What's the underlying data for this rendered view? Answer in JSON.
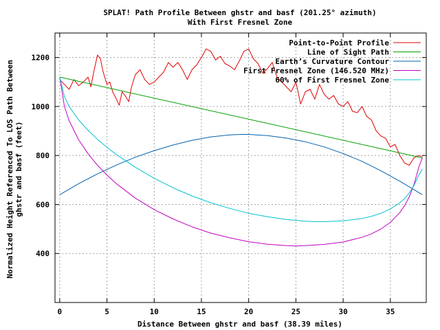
{
  "chart_data": {
    "type": "line",
    "title_line1": "SPLAT! Path Profile Between ghstr and basf (201.25° azimuth)",
    "title_line2": "With First Fresnel Zone",
    "xlabel": "Distance Between ghstr and basf (38.39 miles)",
    "ylabel_line1": "Normalized Height Referenced To LOS Path Between",
    "ylabel_line2": "ghstr and basf (feet)",
    "xlim": [
      -0.5,
      38.8
    ],
    "ylim": [
      200,
      1300
    ],
    "x_ticks": [
      0,
      5,
      10,
      15,
      20,
      25,
      30,
      35
    ],
    "y_ticks": [
      400,
      600,
      800,
      1000,
      1200
    ],
    "grid": true,
    "legend_position": "top-right",
    "series": [
      {
        "name": "Point-to-Point Profile",
        "color": "#e00000",
        "x": [
          0,
          0.5,
          1,
          1.5,
          2,
          2.5,
          3,
          3.3,
          3.6,
          4,
          4.3,
          4.6,
          5,
          5.3,
          5.6,
          6,
          6.3,
          6.6,
          7,
          7.3,
          7.6,
          8,
          8.5,
          9,
          9.5,
          10,
          10.5,
          11,
          11.5,
          12,
          12.5,
          13,
          13.5,
          14,
          14.5,
          15,
          15.5,
          16,
          16.5,
          17,
          17.5,
          18,
          18.5,
          19,
          19.5,
          20,
          20.5,
          21,
          21.5,
          22,
          22.5,
          23,
          23.5,
          24,
          24.5,
          25,
          25.5,
          26,
          26.5,
          27,
          27.5,
          28,
          28.5,
          29,
          29.5,
          30,
          30.5,
          31,
          31.5,
          32,
          32.5,
          33,
          33.5,
          34,
          34.5,
          35,
          35.5,
          36,
          36.5,
          37,
          37.5,
          38,
          38.39
        ],
        "y": [
          1110,
          1090,
          1070,
          1110,
          1085,
          1100,
          1120,
          1080,
          1140,
          1210,
          1195,
          1140,
          1090,
          1100,
          1060,
          1030,
          1005,
          1060,
          1040,
          1020,
          1080,
          1130,
          1150,
          1110,
          1090,
          1100,
          1120,
          1140,
          1180,
          1160,
          1180,
          1150,
          1110,
          1150,
          1170,
          1200,
          1235,
          1225,
          1190,
          1205,
          1175,
          1165,
          1150,
          1185,
          1225,
          1235,
          1195,
          1175,
          1135,
          1155,
          1180,
          1120,
          1100,
          1080,
          1060,
          1100,
          1010,
          1060,
          1070,
          1030,
          1090,
          1050,
          1030,
          1045,
          1010,
          1000,
          1020,
          980,
          975,
          1000,
          960,
          945,
          900,
          880,
          870,
          835,
          845,
          800,
          770,
          760,
          790,
          800,
          795
        ]
      },
      {
        "name": "Line of Sight Path",
        "color": "#00a000",
        "x": [
          0,
          38.39
        ],
        "y": [
          1120,
          790
        ]
      },
      {
        "name": "Earth’s Curvature Contour",
        "color": "#0060ad",
        "x": [
          0,
          2,
          4,
          6,
          8,
          10,
          12,
          14,
          16,
          18,
          19.2,
          20,
          22,
          24,
          26,
          28,
          30,
          32,
          34,
          36,
          38.39
        ],
        "y": [
          640,
          685,
          725,
          761,
          793,
          820,
          843,
          862,
          876,
          884,
          886,
          886,
          881,
          871,
          856,
          835,
          808,
          776,
          738,
          695,
          640
        ]
      },
      {
        "name": "First Fresnel Zone (146.520 MHz)",
        "color": "#c000c0",
        "x": [
          0,
          0.5,
          1,
          2,
          3,
          4,
          5,
          6,
          8,
          10,
          12,
          14,
          16,
          18,
          20,
          22,
          24,
          25,
          26,
          28,
          30,
          32,
          33,
          34,
          35,
          36,
          36.5,
          37,
          37.5,
          38,
          38.39
        ],
        "y": [
          1120,
          1000,
          942,
          864,
          807,
          760,
          720,
          685,
          626,
          579,
          541,
          509,
          483,
          464,
          448,
          438,
          432,
          431,
          432,
          437,
          447,
          466,
          480,
          500,
          527,
          567,
          595,
          631,
          681,
          751,
          790
        ]
      },
      {
        "name": "60% of First Fresnel Zone",
        "color": "#00c0d0",
        "x": [
          0,
          0.5,
          1,
          2,
          3,
          4,
          5,
          6,
          8,
          10,
          12,
          14,
          16,
          18,
          20,
          22,
          24,
          26,
          27,
          28,
          30,
          32,
          33,
          34,
          35,
          36,
          36.5,
          37,
          37.5,
          38,
          38.39
        ],
        "y": [
          1120,
          1040,
          1000,
          945,
          903,
          866,
          833,
          804,
          752,
          707,
          668,
          635,
          607,
          584,
          564,
          550,
          539,
          532,
          530,
          530,
          533,
          543,
          552,
          564,
          582,
          607,
          624,
          647,
          677,
          719,
          745
        ]
      }
    ]
  }
}
